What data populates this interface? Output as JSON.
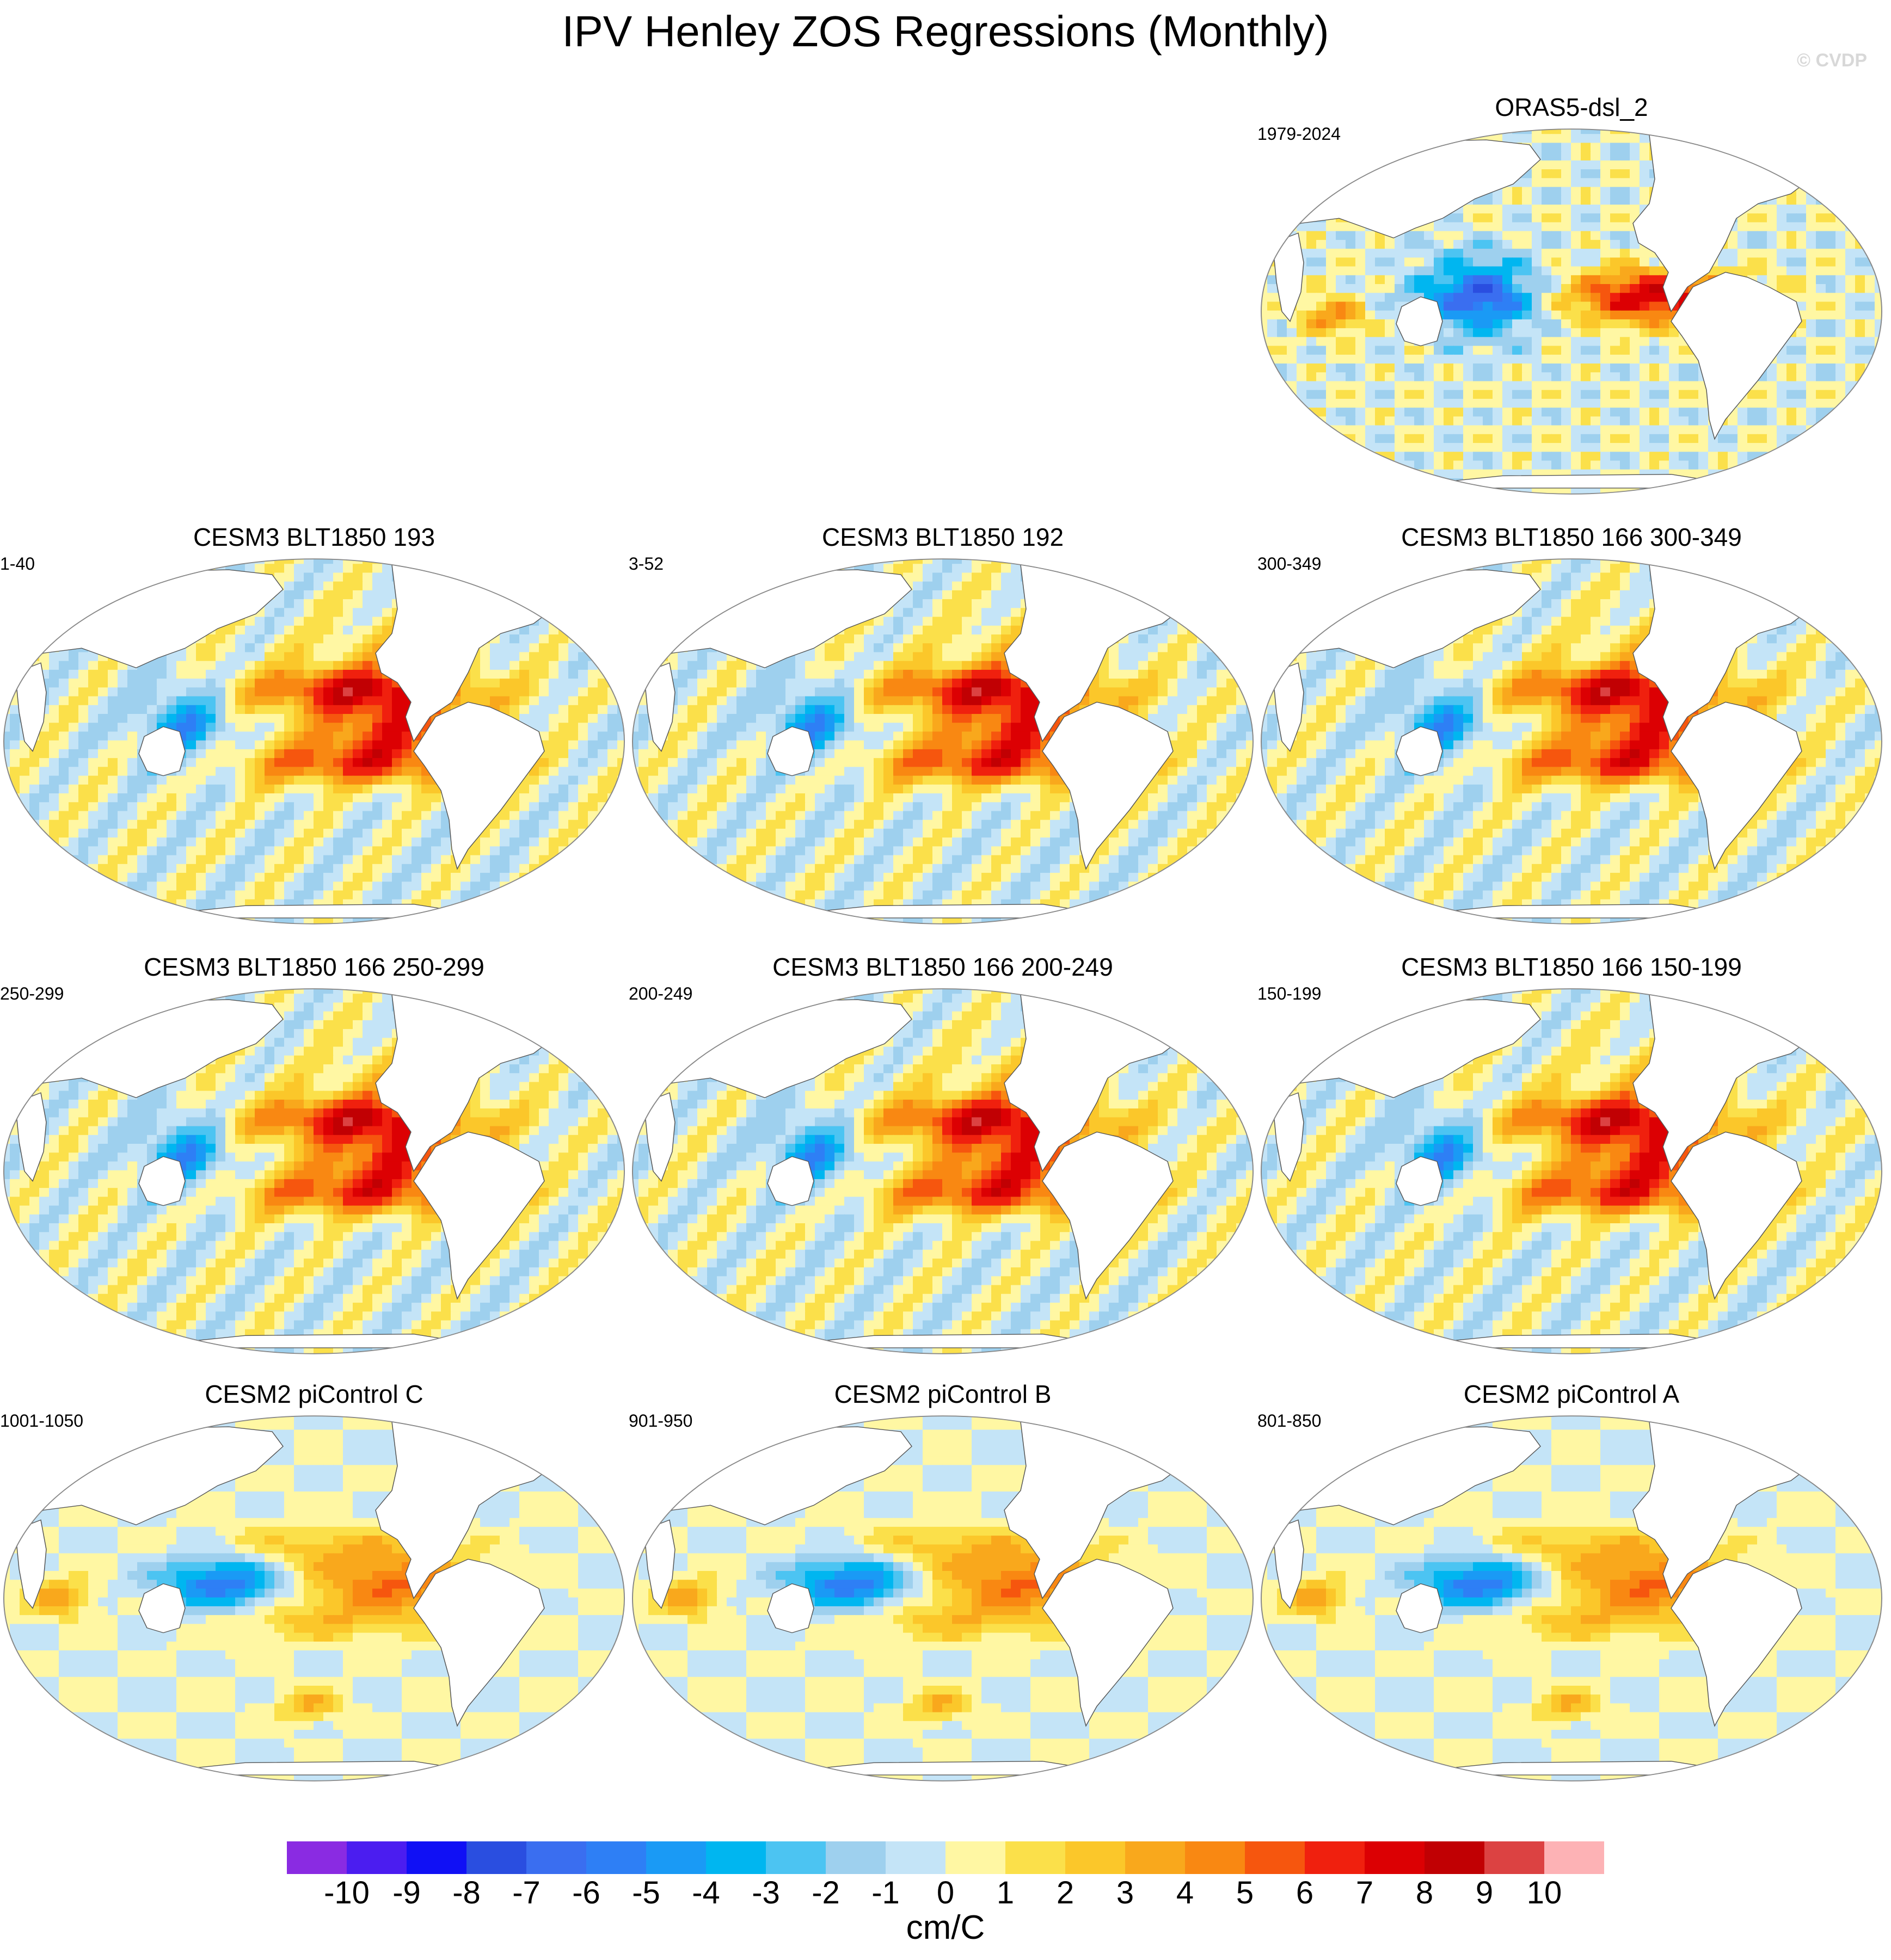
{
  "title": "IPV Henley ZOS Regressions (Monthly)",
  "credit": "© CVDP",
  "panels": [
    {
      "title": "ORAS5-dsl_2",
      "period": "1979-2024",
      "pattern": "obs"
    },
    {
      "title": "CESM3 BLT1850 193",
      "period": "1-40",
      "pattern": "cesm3"
    },
    {
      "title": "CESM3 BLT1850 192",
      "period": "3-52",
      "pattern": "cesm3"
    },
    {
      "title": "CESM3 BLT1850 166 300-349",
      "period": "300-349",
      "pattern": "cesm3"
    },
    {
      "title": "CESM3 BLT1850 166 250-299",
      "period": "250-299",
      "pattern": "cesm3"
    },
    {
      "title": "CESM3 BLT1850 166 200-249",
      "period": "200-249",
      "pattern": "cesm3"
    },
    {
      "title": "CESM3 BLT1850 166 150-199",
      "period": "150-199",
      "pattern": "cesm3"
    },
    {
      "title": "CESM2 piControl C",
      "period": "1001-1050",
      "pattern": "cesm2"
    },
    {
      "title": "CESM2 piControl B",
      "period": "901-950",
      "pattern": "cesm2"
    },
    {
      "title": "CESM2 piControl A",
      "period": "801-850",
      "pattern": "cesm2"
    }
  ],
  "colorbar": {
    "units": "cm/C",
    "tick_labels": [
      "-10",
      "-9",
      "-8",
      "-7",
      "-6",
      "-5",
      "-4",
      "-3",
      "-2",
      "-1",
      "0",
      "1",
      "2",
      "3",
      "4",
      "5",
      "6",
      "7",
      "8",
      "9",
      "10"
    ],
    "colors": [
      "#8a2be2",
      "#4b1df0",
      "#1010f5",
      "#2a4ee0",
      "#3a6ef0",
      "#2e7ff5",
      "#1a9af5",
      "#00b6f0",
      "#4cc4f2",
      "#9ed0ee",
      "#c4e4f7",
      "#fff7a3",
      "#fbe04a",
      "#fbc72a",
      "#f9a81c",
      "#f98812",
      "#f6560e",
      "#f0200e",
      "#dc0003",
      "#c10003",
      "#dc4242",
      "#fdb2b5"
    ]
  }
}
